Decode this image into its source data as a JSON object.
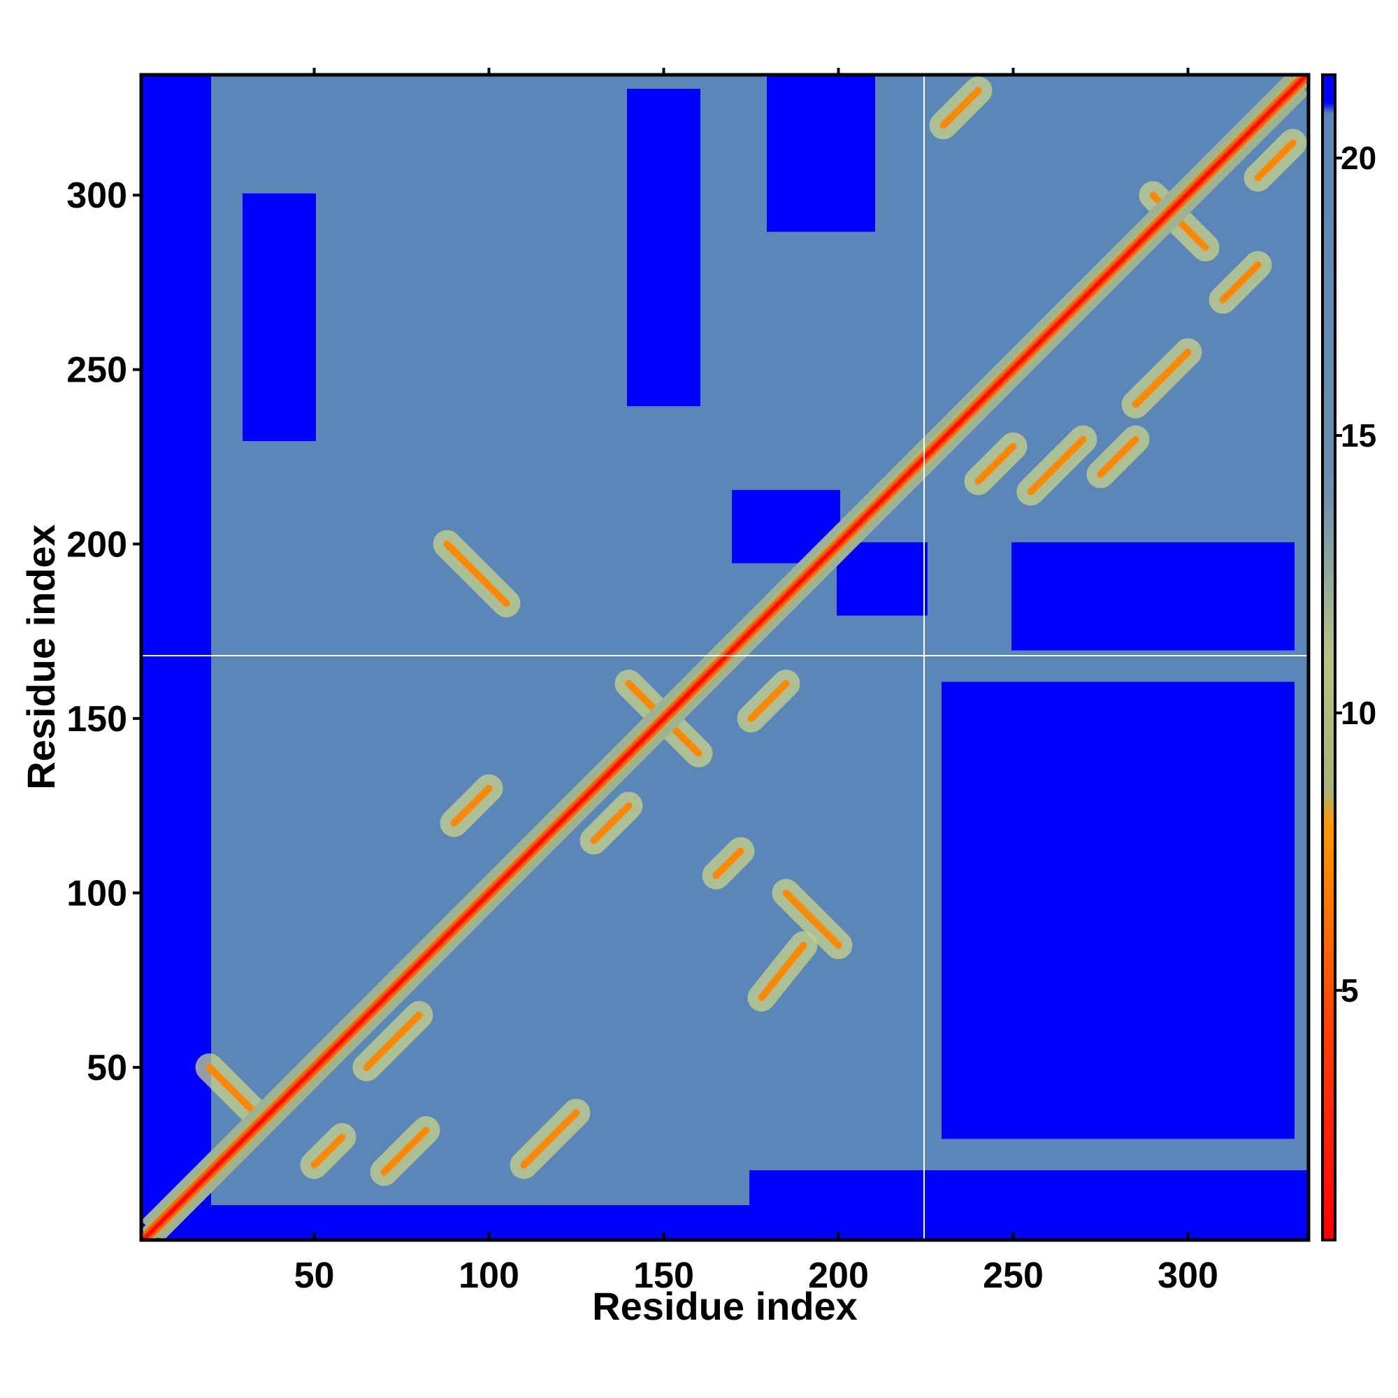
{
  "chart_data": {
    "type": "heatmap",
    "title": "",
    "xlabel": "Residue index",
    "ylabel": "Residue index",
    "xlim": [
      1,
      334
    ],
    "ylim": [
      1,
      334
    ],
    "x_ticks": [
      50,
      100,
      150,
      200,
      250,
      300
    ],
    "y_ticks": [
      50,
      100,
      150,
      200,
      250,
      300
    ],
    "colorbar": {
      "range": [
        0.5,
        21.5
      ],
      "ticks": [
        5,
        10,
        15,
        20
      ],
      "colors": {
        "low": "#ff0000",
        "mid": "#ff8800",
        "transition": "#c8d28a",
        "background": "#5a86b8",
        "high": "#0000ff"
      },
      "stops": [
        {
          "value": 0.5,
          "color": "#ff0000"
        },
        {
          "value": 4.5,
          "color": "#ff4400"
        },
        {
          "value": 8.0,
          "color": "#ff9900"
        },
        {
          "value": 8.6,
          "color": "#aab078"
        },
        {
          "value": 11.0,
          "color": "#b7c384"
        },
        {
          "value": 14.0,
          "color": "#6a8fb0"
        },
        {
          "value": 20.8,
          "color": "#5a86b8"
        },
        {
          "value": 21.0,
          "color": "#0000ff"
        },
        {
          "value": 21.5,
          "color": "#0000ff"
        }
      ]
    },
    "gap_lines": {
      "x": 225,
      "y": 168,
      "color": "#ffffff"
    },
    "contact_segments": [
      {
        "type": "parallel",
        "from": [
          50,
          22
        ],
        "to": [
          58,
          30
        ]
      },
      {
        "type": "parallel",
        "from": [
          65,
          50
        ],
        "to": [
          80,
          65
        ]
      },
      {
        "type": "parallel",
        "from": [
          110,
          22
        ],
        "to": [
          125,
          37
        ]
      },
      {
        "type": "parallel",
        "from": [
          130,
          115
        ],
        "to": [
          140,
          125
        ]
      },
      {
        "type": "antiparallel",
        "from": [
          140,
          160
        ],
        "to": [
          160,
          140
        ]
      },
      {
        "type": "parallel",
        "from": [
          175,
          150
        ],
        "to": [
          185,
          160
        ]
      },
      {
        "type": "parallel",
        "from": [
          70,
          20
        ],
        "to": [
          82,
          32
        ]
      },
      {
        "type": "antiparallel",
        "from": [
          20,
          50
        ],
        "to": [
          35,
          35
        ]
      },
      {
        "type": "antiparallel",
        "from": [
          88,
          200
        ],
        "to": [
          105,
          183
        ]
      },
      {
        "type": "parallel",
        "from": [
          178,
          70
        ],
        "to": [
          190,
          85
        ]
      },
      {
        "type": "antiparallel",
        "from": [
          185,
          100
        ],
        "to": [
          200,
          85
        ]
      },
      {
        "type": "parallel",
        "from": [
          165,
          105
        ],
        "to": [
          172,
          112
        ]
      },
      {
        "type": "parallel",
        "from": [
          90,
          120
        ],
        "to": [
          100,
          130
        ]
      },
      {
        "type": "parallel",
        "from": [
          255,
          215
        ],
        "to": [
          270,
          230
        ]
      },
      {
        "type": "parallel",
        "from": [
          285,
          240
        ],
        "to": [
          300,
          255
        ]
      },
      {
        "type": "antiparallel",
        "from": [
          290,
          300
        ],
        "to": [
          305,
          285
        ]
      },
      {
        "type": "parallel",
        "from": [
          310,
          270
        ],
        "to": [
          320,
          280
        ]
      },
      {
        "type": "parallel",
        "from": [
          320,
          305
        ],
        "to": [
          330,
          315
        ]
      },
      {
        "type": "parallel",
        "from": [
          240,
          218
        ],
        "to": [
          250,
          228
        ]
      },
      {
        "type": "parallel",
        "from": [
          275,
          220
        ],
        "to": [
          285,
          230
        ]
      },
      {
        "type": "parallel",
        "from": [
          230,
          320
        ],
        "to": [
          240,
          330
        ]
      }
    ],
    "far_blocks": [
      {
        "x": [
          1,
          20
        ],
        "y": [
          1,
          334
        ]
      },
      {
        "x": [
          1,
          334
        ],
        "y": [
          1,
          10
        ]
      },
      {
        "x": [
          175,
          334
        ],
        "y": [
          1,
          20
        ]
      },
      {
        "x": [
          200,
          225
        ],
        "y": [
          180,
          200
        ]
      },
      {
        "x": [
          170,
          200
        ],
        "y": [
          195,
          215
        ]
      },
      {
        "x": [
          30,
          50
        ],
        "y": [
          230,
          300
        ]
      },
      {
        "x": [
          140,
          160
        ],
        "y": [
          240,
          330
        ]
      },
      {
        "x": [
          180,
          210
        ],
        "y": [
          290,
          334
        ]
      },
      {
        "x": [
          250,
          330
        ],
        "y": [
          170,
          200
        ]
      },
      {
        "x": [
          230,
          330
        ],
        "y": [
          30,
          160
        ]
      }
    ]
  }
}
